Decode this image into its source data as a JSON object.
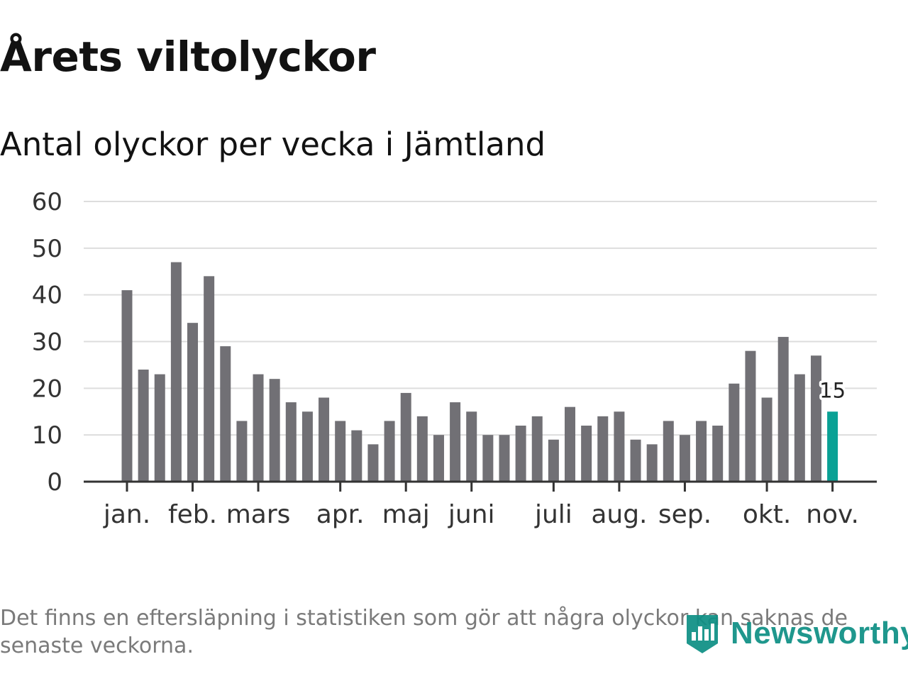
{
  "title": "Årets viltolyckor",
  "subtitle": "Antal olyckor per vecka i Jämtland",
  "footnote": "Det finns en eftersläpning i statistiken som gör att några olyckor kan saknas de senaste veckorna.",
  "brand": "Newsworthy",
  "colors": {
    "bar": "#717075",
    "highlight": "#0aa195",
    "grid": "#dddddd",
    "axis": "#333333",
    "brand": "#0d8f84"
  },
  "chart_data": {
    "type": "bar",
    "title": "Antal olyckor per vecka i Jämtland",
    "xlabel": "",
    "ylabel": "",
    "ylim": [
      0,
      60
    ],
    "yticks": [
      0,
      10,
      20,
      30,
      40,
      50,
      60
    ],
    "grid": true,
    "weeks": [
      1,
      2,
      3,
      4,
      5,
      6,
      7,
      8,
      9,
      10,
      11,
      12,
      13,
      14,
      15,
      16,
      17,
      18,
      19,
      20,
      21,
      22,
      23,
      24,
      25,
      26,
      27,
      28,
      29,
      30,
      31,
      32,
      33,
      34,
      35,
      36,
      37,
      38,
      39,
      40,
      41,
      42,
      43,
      44
    ],
    "values": [
      41,
      24,
      23,
      47,
      34,
      44,
      29,
      13,
      23,
      22,
      17,
      15,
      18,
      13,
      11,
      8,
      13,
      19,
      14,
      10,
      17,
      15,
      10,
      10,
      12,
      14,
      9,
      16,
      12,
      14,
      15,
      9,
      8,
      13,
      10,
      13,
      12,
      21,
      28,
      18,
      31,
      23,
      27,
      15
    ],
    "highlight_index": 43,
    "highlight_label": "15",
    "month_ticks": [
      {
        "label": "jan.",
        "position": 1.0
      },
      {
        "label": "feb.",
        "position": 5.0
      },
      {
        "label": "mars",
        "position": 9.0
      },
      {
        "label": "apr.",
        "position": 14.0
      },
      {
        "label": "maj",
        "position": 18.0
      },
      {
        "label": "juni",
        "position": 22.0
      },
      {
        "label": "juli",
        "position": 27.0
      },
      {
        "label": "aug.",
        "position": 31.0
      },
      {
        "label": "sep.",
        "position": 35.0
      },
      {
        "label": "okt.",
        "position": 40.0
      },
      {
        "label": "nov.",
        "position": 44.0
      }
    ]
  }
}
